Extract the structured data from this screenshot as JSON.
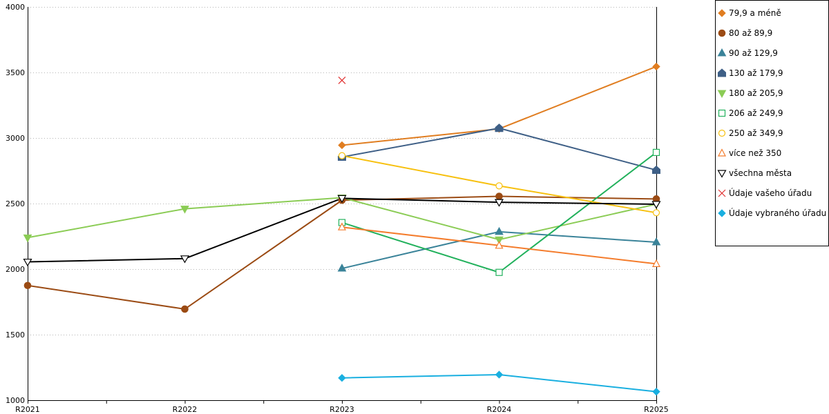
{
  "chart_data": {
    "type": "line",
    "categories": [
      "R2021",
      "R2022",
      "R2023",
      "R2024",
      "R2025"
    ],
    "ylim": [
      1000,
      4000
    ],
    "yticks": [
      1000,
      1500,
      2000,
      2500,
      3000,
      3500,
      4000
    ],
    "ytick_labels": [
      "1000",
      "1500",
      "2000",
      "2500",
      "3000",
      "3500",
      "4000"
    ],
    "grid": true,
    "legend_position": "right",
    "series": [
      {
        "name": "79,9 a méně",
        "color": "#e07d20",
        "marker": "diamond",
        "values": [
          null,
          null,
          2945,
          3070,
          3545
        ]
      },
      {
        "name": "80 až 89,9",
        "color": "#9b4b14",
        "marker": "octagon",
        "values": [
          1875,
          1695,
          2525,
          2555,
          2535
        ]
      },
      {
        "name": "90 až 129,9",
        "color": "#3a8399",
        "marker": "triangle-up",
        "values": [
          null,
          null,
          2005,
          2285,
          2205
        ]
      },
      {
        "name": "130 až 179,9",
        "color": "#3e5f86",
        "marker": "pentagon",
        "values": [
          null,
          null,
          2855,
          3075,
          2755
        ]
      },
      {
        "name": "180 až 205,9",
        "color": "#8bcc55",
        "marker": "triangle-down",
        "values": [
          2240,
          2460,
          2545,
          2225,
          2495
        ]
      },
      {
        "name": "206 až 249,9",
        "color": "#22b15c",
        "marker": "square-open",
        "values": [
          null,
          null,
          2355,
          1975,
          2890
        ]
      },
      {
        "name": "250 až 349,9",
        "color": "#f7c00e",
        "marker": "circle-open",
        "values": [
          null,
          null,
          2865,
          2635,
          2430
        ]
      },
      {
        "name": "více než 350",
        "color": "#f47c2c",
        "marker": "triangle-up-open",
        "values": [
          null,
          null,
          2320,
          2180,
          2040
        ]
      },
      {
        "name": "všechna města",
        "color": "#000000",
        "marker": "triangle-down-open",
        "values": [
          2055,
          2080,
          2540,
          2510,
          2495
        ]
      },
      {
        "name": "Údaje vašeho úřadu",
        "color": "#e03030",
        "marker": "x",
        "values": [
          null,
          null,
          3440,
          null,
          null
        ]
      },
      {
        "name": "Údaje vybraného úřadu",
        "color": "#19afe0",
        "marker": "diamond",
        "values": [
          null,
          null,
          1170,
          1195,
          1065
        ]
      }
    ]
  }
}
